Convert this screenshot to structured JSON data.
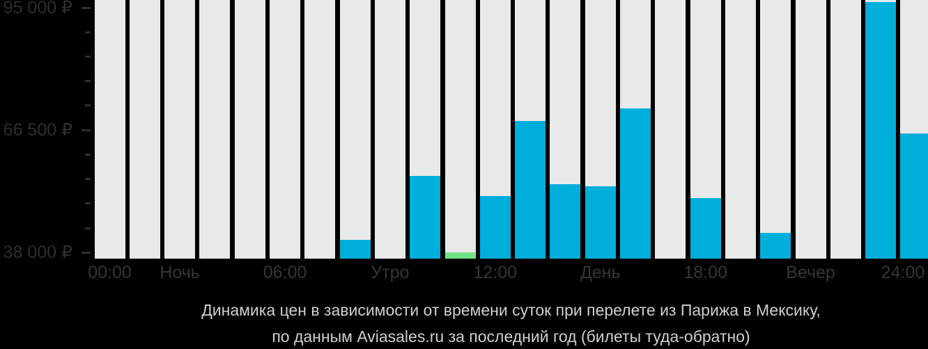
{
  "caption": {
    "line1": "Динамика цен в зависимости от времени суток при перелете из Парижа в Мексику,",
    "line2": "по данным Aviasales.ru за последний год (билеты туда-обратно)"
  },
  "chart_data": {
    "type": "bar",
    "title": "Динамика цен в зависимости от времени суток при перелете из Парижа в Мексику, по данным Aviasales.ru за последний год (билеты туда-обратно)",
    "currency": "₽",
    "x_unit": "hour of day",
    "categories": [
      "00",
      "01",
      "02",
      "03",
      "04",
      "05",
      "06",
      "07",
      "08",
      "09",
      "10",
      "11",
      "12",
      "13",
      "14",
      "15",
      "16",
      "17",
      "18",
      "19",
      "20",
      "21",
      "22",
      "23"
    ],
    "values": [
      null,
      null,
      null,
      null,
      null,
      null,
      null,
      41000,
      null,
      55900,
      38000,
      51200,
      68600,
      53900,
      53500,
      71600,
      null,
      50600,
      null,
      42500,
      null,
      null,
      96300,
      65700
    ],
    "min_price_highlight": {
      "hour": 10,
      "value": 38000
    },
    "x_tick_labels": [
      {
        "bar": 1,
        "text": "00:00"
      },
      {
        "bar": 3,
        "text": "Ночь"
      },
      {
        "bar": 6,
        "text": "06:00"
      },
      {
        "bar": 9,
        "text": "Утро"
      },
      {
        "bar": 12,
        "text": "12:00"
      },
      {
        "bar": 15,
        "text": "День"
      },
      {
        "bar": 18,
        "text": "18:00"
      },
      {
        "bar": 21,
        "text": "Вечер"
      },
      {
        "bar": 24,
        "text": "24:00"
      }
    ],
    "y_axis": {
      "major_ticks": [
        {
          "value": 95000,
          "label": "95 000 ₽"
        },
        {
          "value": 66500,
          "label": "66 500 ₽"
        },
        {
          "value": 38000,
          "label": "38 000 ₽"
        }
      ],
      "minor_tick_values": [
        89300,
        83600,
        77900,
        72200,
        60800,
        55100,
        49400,
        43700
      ],
      "pixel_value_range": [
        36670,
        96780
      ]
    },
    "grid": "off",
    "legend": "none",
    "colors": {
      "page_background": "#000000",
      "bar_background": "#e9e9e9",
      "price_bar": "#00aedc",
      "min_price_bar": "#70e287",
      "y_axis_label": "#2d2f30",
      "x_axis_label": "#343637",
      "tick_dash": "#2e2e2e",
      "caption_text": "#cdd0d1"
    }
  }
}
